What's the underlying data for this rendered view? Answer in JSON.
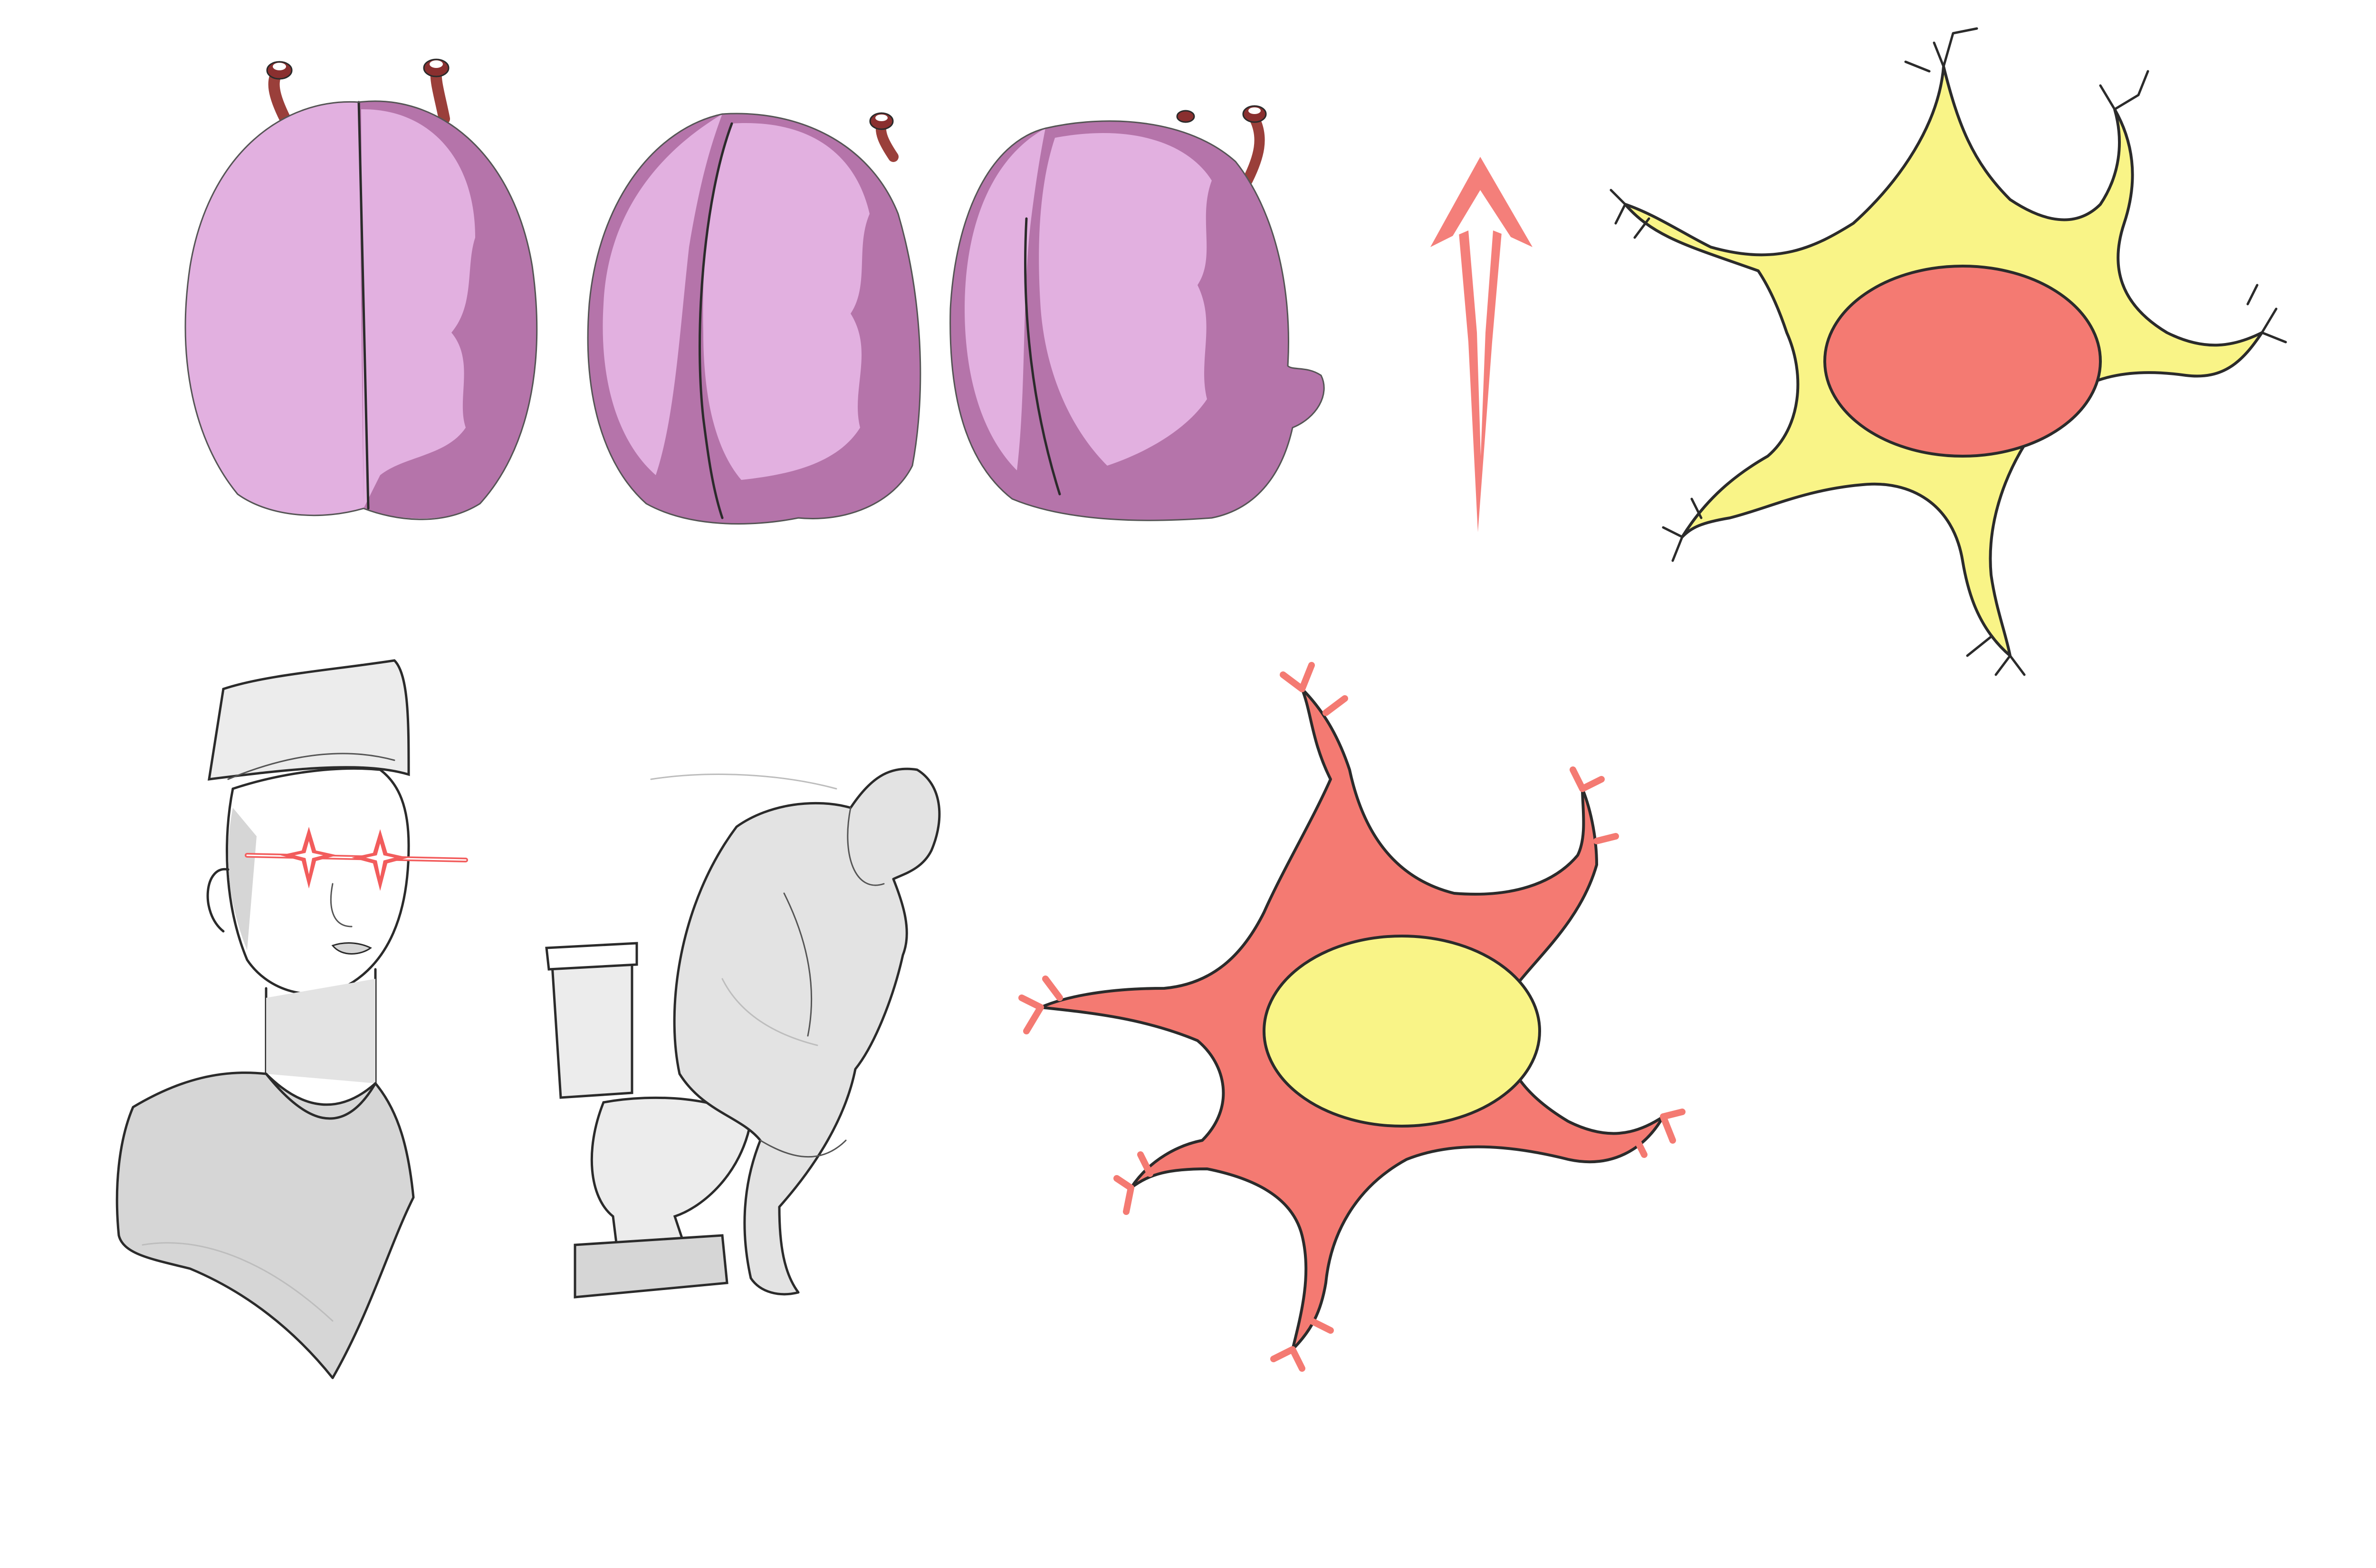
{
  "canvas": {
    "background": "#ffffff"
  },
  "palette": {
    "brain_light": "#e2b0e0",
    "brain_dark": "#b574aa",
    "stalk": "#9a3f3a",
    "arrow": "#f47f7a",
    "cell_yellow": "#f9f487",
    "cell_red": "#f47a72",
    "sketch_gray": "#d6d6d6",
    "sketch_light": "#ececec",
    "laser": "#f25c5c"
  },
  "illustrations": [
    {
      "name": "brain-front-view",
      "icon": "brain-icon"
    },
    {
      "name": "brain-three-quarter-view",
      "icon": "brain-icon"
    },
    {
      "name": "brain-side-view",
      "icon": "brain-icon"
    },
    {
      "name": "upward-arrow",
      "icon": "arrow-up-icon"
    },
    {
      "name": "neuron-yellow",
      "icon": "neuron-icon"
    },
    {
      "name": "bust-laser-eyes",
      "icon": "bust-sketch-icon"
    },
    {
      "name": "thinker-on-toilet",
      "icon": "thinker-sketch-icon"
    },
    {
      "name": "neuron-red",
      "icon": "neuron-icon"
    }
  ]
}
